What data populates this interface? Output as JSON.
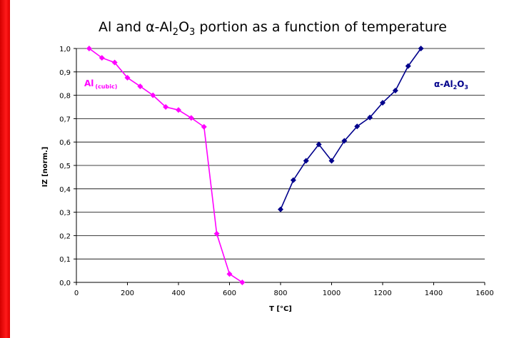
{
  "chart_data": {
    "type": "line",
    "title": "Al and α-Al2O3 portion as a function of temperature",
    "xlabel": "T [°C]",
    "ylabel": "IZ [norm.]",
    "xlim": [
      0,
      1600
    ],
    "ylim": [
      0,
      1.0
    ],
    "x_ticks": [
      "0",
      "200",
      "400",
      "600",
      "800",
      "1000",
      "1200",
      "1400",
      "1600"
    ],
    "y_ticks": [
      "0,0",
      "0,1",
      "0,2",
      "0,3",
      "0,4",
      "0,5",
      "0,6",
      "0,7",
      "0,8",
      "0,9",
      "1,0"
    ],
    "grid": "horizontal",
    "series": [
      {
        "name": "Al (cubic)",
        "color": "#ff00ff",
        "marker": "diamond",
        "x": [
          50,
          100,
          150,
          200,
          250,
          300,
          350,
          400,
          450,
          500,
          550,
          600,
          650
        ],
        "y": [
          1.0,
          0.96,
          0.94,
          0.875,
          0.838,
          0.8,
          0.75,
          0.737,
          0.703,
          0.665,
          0.208,
          0.036,
          0.0
        ]
      },
      {
        "name": "α-Al2O3",
        "color": "#00008b",
        "marker": "diamond",
        "x": [
          800,
          850,
          900,
          950,
          1000,
          1050,
          1100,
          1150,
          1200,
          1250,
          1300,
          1350
        ],
        "y": [
          0.312,
          0.437,
          0.52,
          0.59,
          0.52,
          0.605,
          0.667,
          0.705,
          0.768,
          0.82,
          0.925,
          1.0
        ]
      }
    ]
  },
  "labels": {
    "title_pre": "Al and ",
    "title_alpha": "α",
    "title_mid": "-Al",
    "title_sub2": "2",
    "title_o": "O",
    "title_sub3": "3",
    "title_post": " portion as a function of temperature",
    "al_main": "Al",
    "al_sub": "(cubic)",
    "alox_alpha": "α",
    "alox_mid": "-Al",
    "alox_sub2": "2",
    "alox_o": "O",
    "alox_sub3": "3"
  }
}
